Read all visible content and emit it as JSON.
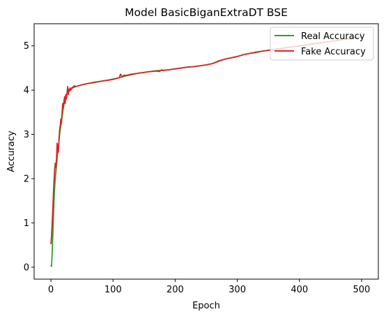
{
  "chart_data": {
    "type": "line",
    "title": "Model BasicBiganExtraDT BSE",
    "xlabel": "Epoch",
    "ylabel": "Accuracy",
    "xlim": [
      -27,
      527
    ],
    "ylim": [
      -0.27,
      5.5
    ],
    "xticks": [
      0,
      100,
      200,
      300,
      400,
      500
    ],
    "yticks": [
      0,
      1,
      2,
      3,
      4,
      5
    ],
    "grid": false,
    "legend_position": "top-right",
    "series": [
      {
        "name": "Real Accuracy",
        "color": "#2ca02c",
        "x": [
          0,
          1,
          2,
          3,
          4,
          5,
          6,
          7,
          8,
          9,
          10,
          11,
          12,
          13,
          14,
          15,
          16,
          17,
          18,
          19,
          20,
          22,
          24,
          26,
          28,
          30,
          32,
          35,
          40,
          50,
          60,
          70,
          80,
          90,
          100,
          110,
          120,
          130,
          140,
          150,
          160,
          170,
          180,
          190,
          200,
          210,
          220,
          230,
          240,
          250,
          260,
          270,
          280,
          290,
          300,
          310,
          320,
          330,
          340,
          350,
          360,
          370,
          380,
          390,
          400,
          410,
          420,
          430,
          440,
          450,
          460,
          470,
          480,
          490,
          500
        ],
        "y": [
          0.05,
          0.02,
          0.3,
          0.7,
          1.1,
          1.5,
          1.8,
          2.0,
          2.15,
          2.3,
          2.45,
          2.6,
          2.7,
          2.85,
          3.0,
          3.1,
          3.2,
          3.3,
          3.4,
          3.5,
          3.6,
          3.75,
          3.85,
          3.92,
          3.97,
          4.0,
          4.02,
          4.05,
          4.08,
          4.12,
          4.15,
          4.17,
          4.2,
          4.22,
          4.25,
          4.28,
          4.32,
          4.35,
          4.38,
          4.4,
          4.42,
          4.44,
          4.45,
          4.46,
          4.48,
          4.5,
          4.52,
          4.53,
          4.55,
          4.57,
          4.6,
          4.65,
          4.7,
          4.73,
          4.76,
          4.8,
          4.83,
          4.85,
          4.88,
          4.9,
          4.92,
          4.94,
          4.96,
          4.98,
          5.0,
          5.02,
          5.04,
          5.06,
          5.08,
          5.1,
          5.12,
          5.14,
          5.16,
          5.18,
          5.2
        ]
      },
      {
        "name": "Fake Accuracy",
        "color": "#d62728",
        "x": [
          0,
          1,
          2,
          3,
          4,
          5,
          6,
          7,
          8,
          9,
          10,
          11,
          12,
          13,
          14,
          15,
          16,
          17,
          18,
          19,
          20,
          21,
          22,
          23,
          24,
          25,
          26,
          27,
          28,
          29,
          30,
          31,
          32,
          33,
          34,
          35,
          36,
          38,
          40,
          45,
          50,
          60,
          70,
          80,
          90,
          100,
          110,
          112,
          115,
          118,
          120,
          130,
          140,
          150,
          160,
          170,
          175,
          178,
          180,
          185,
          190,
          200,
          210,
          220,
          230,
          240,
          250,
          260,
          270,
          280,
          290,
          300,
          310,
          320,
          330,
          340,
          350,
          360,
          370,
          380,
          390,
          400,
          410,
          420,
          430,
          440,
          450,
          460,
          470,
          480,
          490,
          500
        ],
        "y": [
          0.52,
          0.7,
          1.0,
          1.3,
          1.65,
          1.95,
          2.2,
          2.35,
          2.25,
          2.45,
          2.8,
          2.7,
          2.6,
          2.9,
          3.1,
          3.2,
          3.35,
          3.25,
          3.5,
          3.7,
          3.6,
          3.75,
          3.85,
          3.7,
          3.9,
          3.8,
          3.95,
          4.08,
          3.9,
          4.02,
          3.98,
          4.05,
          4.0,
          4.03,
          4.06,
          4.05,
          4.08,
          4.1,
          4.08,
          4.1,
          4.12,
          4.15,
          4.18,
          4.2,
          4.22,
          4.24,
          4.28,
          4.36,
          4.3,
          4.34,
          4.33,
          4.36,
          4.38,
          4.4,
          4.42,
          4.43,
          4.42,
          4.46,
          4.44,
          4.45,
          4.46,
          4.48,
          4.5,
          4.52,
          4.53,
          4.55,
          4.57,
          4.6,
          4.66,
          4.7,
          4.73,
          4.76,
          4.8,
          4.83,
          4.86,
          4.88,
          4.9,
          4.92,
          4.94,
          4.96,
          4.98,
          5.0,
          5.02,
          5.04,
          5.06,
          5.08,
          5.1,
          5.12,
          5.15,
          5.17,
          5.19,
          5.22
        ]
      }
    ]
  }
}
